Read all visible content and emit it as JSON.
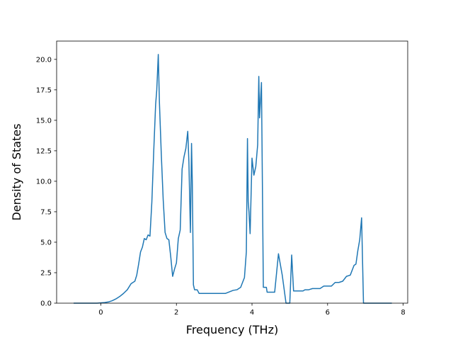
{
  "chart_data": {
    "type": "line",
    "title": "",
    "xlabel": "Frequency (THz)",
    "ylabel": "Density of States",
    "xlim": [
      -1.17,
      8.12
    ],
    "ylim": [
      0,
      21.5
    ],
    "x_ticks": [
      0,
      2,
      4,
      6,
      8
    ],
    "y_ticks": [
      0.0,
      2.5,
      5.0,
      7.5,
      10.0,
      12.5,
      15.0,
      17.5,
      20.0
    ],
    "x_tick_labels": [
      "0",
      "2",
      "4",
      "6",
      "8"
    ],
    "y_tick_labels": [
      "0.0",
      "2.5",
      "5.0",
      "7.5",
      "10.0",
      "12.5",
      "15.0",
      "17.5",
      "20.0"
    ],
    "grid": false,
    "legend": "none",
    "series_color": "#1f77b4",
    "series": [
      {
        "x": [
          -0.72,
          -0.4,
          -0.1,
          0.1,
          0.2,
          0.3,
          0.4,
          0.5,
          0.6,
          0.7,
          0.8,
          0.9,
          0.95,
          1.0,
          1.05,
          1.1,
          1.15,
          1.2,
          1.25,
          1.3,
          1.35,
          1.4,
          1.45,
          1.48,
          1.52,
          1.55,
          1.6,
          1.65,
          1.7,
          1.75,
          1.8,
          1.85,
          1.9,
          1.95,
          2.0,
          2.05,
          2.1,
          2.15,
          2.2,
          2.25,
          2.3,
          2.33,
          2.37,
          2.4,
          2.42,
          2.45,
          2.48,
          2.5,
          2.52,
          2.55,
          2.6,
          2.7,
          2.8,
          3.0,
          3.3,
          3.5,
          3.6,
          3.7,
          3.8,
          3.85,
          3.88,
          3.9,
          3.92,
          3.95,
          4.0,
          4.05,
          4.1,
          4.15,
          4.18,
          4.2,
          4.25,
          4.3,
          4.33,
          4.35,
          4.38,
          4.4,
          4.45,
          4.5,
          4.6,
          4.7,
          4.8,
          4.9,
          4.95,
          4.97,
          5.0,
          5.05,
          5.1,
          5.2,
          5.3,
          5.35,
          5.4,
          5.45,
          5.5,
          5.6,
          5.7,
          5.8,
          5.9,
          6.0,
          6.1,
          6.2,
          6.3,
          6.4,
          6.5,
          6.6,
          6.7,
          6.75,
          6.8,
          6.85,
          6.9,
          6.95,
          6.97,
          7.0,
          7.3,
          7.7
        ],
        "values": [
          0,
          0,
          0,
          0.05,
          0.1,
          0.2,
          0.35,
          0.55,
          0.8,
          1.1,
          1.6,
          1.8,
          2.3,
          3.2,
          4.2,
          4.6,
          5.3,
          5.2,
          5.6,
          5.5,
          8.3,
          12.5,
          16.3,
          17.5,
          20.4,
          16.5,
          12.2,
          8.5,
          5.8,
          5.3,
          5.2,
          3.8,
          2.2,
          2.8,
          3.3,
          5.3,
          6.0,
          11.0,
          12.0,
          12.7,
          14.1,
          11.6,
          5.8,
          13.1,
          10.0,
          1.5,
          1.1,
          1.1,
          1.1,
          1.1,
          0.8,
          0.8,
          0.8,
          0.8,
          0.8,
          1.05,
          1.1,
          1.3,
          2.1,
          4.2,
          13.5,
          8.3,
          7.5,
          5.7,
          11.9,
          10.5,
          11.2,
          13.0,
          18.6,
          15.2,
          18.1,
          1.3,
          1.3,
          1.3,
          1.3,
          0.9,
          0.9,
          0.9,
          0.9,
          4.05,
          2.3,
          0,
          0,
          0,
          0,
          3.95,
          1.0,
          1.0,
          1.0,
          1.0,
          1.1,
          1.1,
          1.1,
          1.2,
          1.2,
          1.2,
          1.4,
          1.4,
          1.4,
          1.7,
          1.7,
          1.8,
          2.2,
          2.3,
          3.1,
          3.2,
          4.3,
          5.2,
          7.0,
          0,
          0,
          0,
          0,
          0
        ]
      }
    ]
  }
}
